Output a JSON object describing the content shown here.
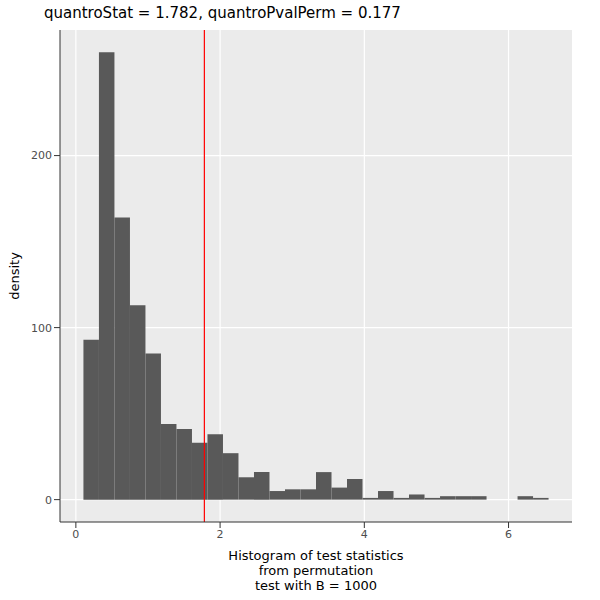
{
  "chart_data": {
    "type": "histogram",
    "title": "quantroStat = 1.782, quantroPvalPerm = 0.177",
    "xlabel": "Histogram of test statistics\nfrom permutation\ntest with B = 1000",
    "ylabel": "density",
    "bins": [
      0.105,
      0.32,
      0.535,
      0.75,
      0.965,
      1.18,
      1.395,
      1.61,
      1.825,
      2.04,
      2.255,
      2.47,
      2.685,
      2.9,
      3.115,
      3.33,
      3.545,
      3.76,
      3.975,
      4.19,
      4.405,
      4.62,
      4.835,
      5.05,
      5.265,
      5.48,
      5.695,
      5.91,
      6.125,
      6.34,
      6.555
    ],
    "values": [
      93,
      260,
      164,
      113,
      85,
      44,
      41,
      33,
      38,
      27,
      13,
      16,
      5,
      6,
      6,
      16,
      7,
      12,
      1,
      5,
      1,
      3,
      1,
      2,
      2,
      2,
      0,
      0,
      2,
      1
    ],
    "color": "#595959",
    "vline": 1.782,
    "vline_color": "#ff0000",
    "xlim": [
      -0.22,
      6.88
    ],
    "xticks": [
      0,
      2,
      4,
      6
    ],
    "ylim": [
      -13,
      273
    ],
    "yticks": [
      0,
      100,
      200
    ],
    "grid": true
  }
}
